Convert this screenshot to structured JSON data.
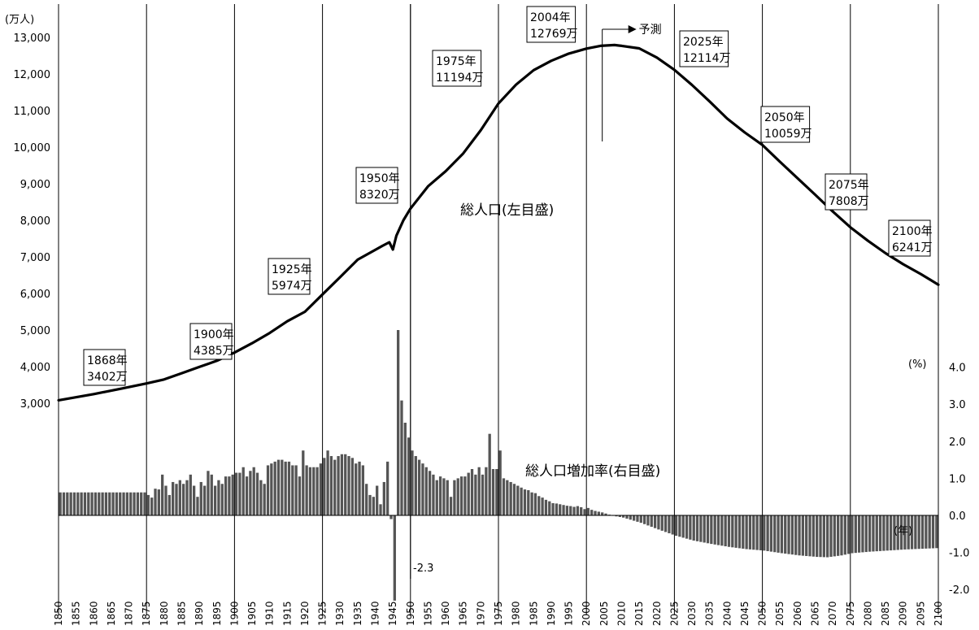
{
  "chart_data": {
    "type": "line+bar",
    "left_axis": {
      "unit": "(万人)",
      "ticks": [
        "3,000",
        "4,000",
        "5,000",
        "6,000",
        "7,000",
        "8,000",
        "9,000",
        "10,000",
        "11,000",
        "12,000",
        "13,000"
      ],
      "range": [
        3000,
        13000
      ]
    },
    "right_axis": {
      "unit": "(%)",
      "ticks": [
        "-2.0",
        "-1.0",
        "0.0",
        "1.0",
        "2.0",
        "3.0",
        "4.0"
      ],
      "range": [
        -2.0,
        4.0
      ]
    },
    "x_axis": {
      "unit": "(年)",
      "range": [
        1850,
        2100
      ],
      "ticks": [
        "1850",
        "1855",
        "1860",
        "1865",
        "1870",
        "1875",
        "1880",
        "1885",
        "1890",
        "1895",
        "1900",
        "1905",
        "1910",
        "1915",
        "1920",
        "1925",
        "1930",
        "1935",
        "1940",
        "1945",
        "1950",
        "1955",
        "1960",
        "1965",
        "1970",
        "1975",
        "1980",
        "1985",
        "1990",
        "1995",
        "2000",
        "2005",
        "2010",
        "2015",
        "2020",
        "2025",
        "2030",
        "2035",
        "2040",
        "2045",
        "2050",
        "2055",
        "2060",
        "2065",
        "2070",
        "2075",
        "2080",
        "2085",
        "2090",
        "2095",
        "2100"
      ]
    },
    "series": [
      {
        "name": "総人口(左目盛)",
        "type": "line",
        "points": [
          [
            1850,
            3080
          ],
          [
            1860,
            3250
          ],
          [
            1868,
            3402
          ],
          [
            1875,
            3540
          ],
          [
            1880,
            3650
          ],
          [
            1885,
            3820
          ],
          [
            1890,
            3990
          ],
          [
            1895,
            4160
          ],
          [
            1900,
            4385
          ],
          [
            1905,
            4640
          ],
          [
            1910,
            4920
          ],
          [
            1915,
            5240
          ],
          [
            1920,
            5500
          ],
          [
            1925,
            5974
          ],
          [
            1930,
            6445
          ],
          [
            1935,
            6925
          ],
          [
            1940,
            7190
          ],
          [
            1942,
            7300
          ],
          [
            1944,
            7400
          ],
          [
            1945,
            7200
          ],
          [
            1946,
            7580
          ],
          [
            1948,
            8000
          ],
          [
            1950,
            8320
          ],
          [
            1955,
            8928
          ],
          [
            1960,
            9342
          ],
          [
            1965,
            9828
          ],
          [
            1970,
            10467
          ],
          [
            1975,
            11194
          ],
          [
            1980,
            11706
          ],
          [
            1985,
            12105
          ],
          [
            1990,
            12361
          ],
          [
            1995,
            12557
          ],
          [
            2000,
            12693
          ],
          [
            2004,
            12769
          ],
          [
            2008,
            12790
          ],
          [
            2010,
            12770
          ],
          [
            2015,
            12700
          ],
          [
            2020,
            12450
          ],
          [
            2025,
            12114
          ],
          [
            2030,
            11700
          ],
          [
            2035,
            11250
          ],
          [
            2040,
            10780
          ],
          [
            2045,
            10400
          ],
          [
            2050,
            10059
          ],
          [
            2055,
            9600
          ],
          [
            2060,
            9150
          ],
          [
            2065,
            8700
          ],
          [
            2070,
            8240
          ],
          [
            2075,
            7808
          ],
          [
            2080,
            7440
          ],
          [
            2085,
            7100
          ],
          [
            2090,
            6800
          ],
          [
            2095,
            6530
          ],
          [
            2100,
            6241
          ]
        ]
      },
      {
        "name": "総人口増加率(右目盛)",
        "type": "bar",
        "keys": [
          [
            1850,
            0.62
          ],
          [
            1874,
            0.62
          ],
          [
            1875,
            0.55
          ],
          [
            1876,
            0.48
          ],
          [
            1877,
            0.72
          ],
          [
            1878,
            0.7
          ],
          [
            1879,
            1.1
          ],
          [
            1880,
            0.8
          ],
          [
            1881,
            0.55
          ],
          [
            1882,
            0.9
          ],
          [
            1883,
            0.85
          ],
          [
            1884,
            0.95
          ],
          [
            1885,
            0.85
          ],
          [
            1886,
            0.95
          ],
          [
            1887,
            1.1
          ],
          [
            1888,
            0.8
          ],
          [
            1889,
            0.5
          ],
          [
            1890,
            0.9
          ],
          [
            1891,
            0.8
          ],
          [
            1892,
            1.2
          ],
          [
            1893,
            1.1
          ],
          [
            1894,
            0.8
          ],
          [
            1895,
            0.95
          ],
          [
            1896,
            0.85
          ],
          [
            1897,
            1.05
          ],
          [
            1898,
            1.05
          ],
          [
            1899,
            1.1
          ],
          [
            1900,
            1.15
          ],
          [
            1901,
            1.15
          ],
          [
            1902,
            1.3
          ],
          [
            1903,
            1.05
          ],
          [
            1904,
            1.2
          ],
          [
            1905,
            1.3
          ],
          [
            1906,
            1.15
          ],
          [
            1907,
            0.95
          ],
          [
            1908,
            0.85
          ],
          [
            1909,
            1.35
          ],
          [
            1910,
            1.4
          ],
          [
            1911,
            1.45
          ],
          [
            1912,
            1.5
          ],
          [
            1913,
            1.5
          ],
          [
            1914,
            1.45
          ],
          [
            1915,
            1.45
          ],
          [
            1916,
            1.35
          ],
          [
            1917,
            1.35
          ],
          [
            1918,
            1.05
          ],
          [
            1919,
            1.75
          ],
          [
            1920,
            1.35
          ],
          [
            1921,
            1.3
          ],
          [
            1922,
            1.3
          ],
          [
            1923,
            1.3
          ],
          [
            1924,
            1.4
          ],
          [
            1925,
            1.55
          ],
          [
            1926,
            1.75
          ],
          [
            1927,
            1.6
          ],
          [
            1928,
            1.5
          ],
          [
            1929,
            1.6
          ],
          [
            1930,
            1.65
          ],
          [
            1931,
            1.65
          ],
          [
            1932,
            1.6
          ],
          [
            1933,
            1.55
          ],
          [
            1934,
            1.4
          ],
          [
            1935,
            1.45
          ],
          [
            1936,
            1.35
          ],
          [
            1937,
            0.85
          ],
          [
            1938,
            0.55
          ],
          [
            1939,
            0.5
          ],
          [
            1940,
            0.8
          ],
          [
            1941,
            0.3
          ],
          [
            1942,
            0.9
          ],
          [
            1943,
            1.45
          ],
          [
            1944,
            -0.1
          ],
          [
            1945,
            -2.3
          ],
          [
            1946,
            5.0
          ],
          [
            1947,
            3.1
          ],
          [
            1948,
            2.5
          ],
          [
            1949,
            2.1
          ],
          [
            1950,
            1.75
          ],
          [
            1951,
            1.6
          ],
          [
            1952,
            1.5
          ],
          [
            1953,
            1.4
          ],
          [
            1954,
            1.3
          ],
          [
            1955,
            1.2
          ],
          [
            1956,
            1.1
          ],
          [
            1957,
            0.95
          ],
          [
            1958,
            1.05
          ],
          [
            1959,
            1.0
          ],
          [
            1960,
            0.95
          ],
          [
            1961,
            0.5
          ],
          [
            1962,
            0.95
          ],
          [
            1963,
            1.0
          ],
          [
            1964,
            1.05
          ],
          [
            1965,
            1.05
          ],
          [
            1966,
            1.15
          ],
          [
            1967,
            1.25
          ],
          [
            1968,
            1.1
          ],
          [
            1969,
            1.3
          ],
          [
            1970,
            1.1
          ],
          [
            1971,
            1.3
          ],
          [
            1972,
            2.2
          ],
          [
            1973,
            1.25
          ],
          [
            1974,
            1.25
          ],
          [
            1975,
            1.75
          ],
          [
            1976,
            1.0
          ],
          [
            1977,
            0.95
          ],
          [
            1978,
            0.9
          ],
          [
            1979,
            0.85
          ],
          [
            1980,
            0.8
          ],
          [
            1981,
            0.75
          ],
          [
            1982,
            0.7
          ],
          [
            1983,
            0.68
          ],
          [
            1984,
            0.62
          ],
          [
            1985,
            0.6
          ],
          [
            1986,
            0.52
          ],
          [
            1987,
            0.48
          ],
          [
            1988,
            0.42
          ],
          [
            1989,
            0.38
          ],
          [
            1990,
            0.33
          ],
          [
            1991,
            0.32
          ],
          [
            1992,
            0.3
          ],
          [
            1993,
            0.28
          ],
          [
            1994,
            0.26
          ],
          [
            1995,
            0.25
          ],
          [
            1996,
            0.23
          ],
          [
            1997,
            0.25
          ],
          [
            1998,
            0.22
          ],
          [
            1999,
            0.17
          ],
          [
            2000,
            0.2
          ],
          [
            2001,
            0.15
          ],
          [
            2002,
            0.12
          ],
          [
            2003,
            0.1
          ],
          [
            2004,
            0.08
          ],
          [
            2005,
            0.05
          ],
          [
            2006,
            0.02
          ],
          [
            2007,
            -0.01
          ],
          [
            2010,
            -0.06
          ],
          [
            2015,
            -0.2
          ],
          [
            2020,
            -0.38
          ],
          [
            2025,
            -0.55
          ],
          [
            2030,
            -0.68
          ],
          [
            2035,
            -0.77
          ],
          [
            2040,
            -0.85
          ],
          [
            2045,
            -0.91
          ],
          [
            2050,
            -0.95
          ],
          [
            2055,
            -1.02
          ],
          [
            2060,
            -1.08
          ],
          [
            2065,
            -1.12
          ],
          [
            2068,
            -1.13
          ],
          [
            2072,
            -1.08
          ],
          [
            2075,
            -1.02
          ],
          [
            2080,
            -0.98
          ],
          [
            2085,
            -0.95
          ],
          [
            2090,
            -0.92
          ],
          [
            2095,
            -0.9
          ],
          [
            2100,
            -0.88
          ]
        ]
      }
    ],
    "annotations": [
      {
        "year": "1868年",
        "pop": "3402万"
      },
      {
        "year": "1900年",
        "pop": "4385万"
      },
      {
        "year": "1925年",
        "pop": "5974万"
      },
      {
        "year": "1950年",
        "pop": "8320万"
      },
      {
        "year": "1975年",
        "pop": "11194万"
      },
      {
        "year": "2004年",
        "pop": "12769万"
      },
      {
        "year": "2025年",
        "pop": "12114万"
      },
      {
        "year": "2050年",
        "pop": "10059万"
      },
      {
        "year": "2075年",
        "pop": "7808万"
      },
      {
        "year": "2100年",
        "pop": "6241万"
      }
    ],
    "forecast_label": "予測",
    "min_label": "-2.3",
    "grid": "vertical lines every 25 years"
  }
}
